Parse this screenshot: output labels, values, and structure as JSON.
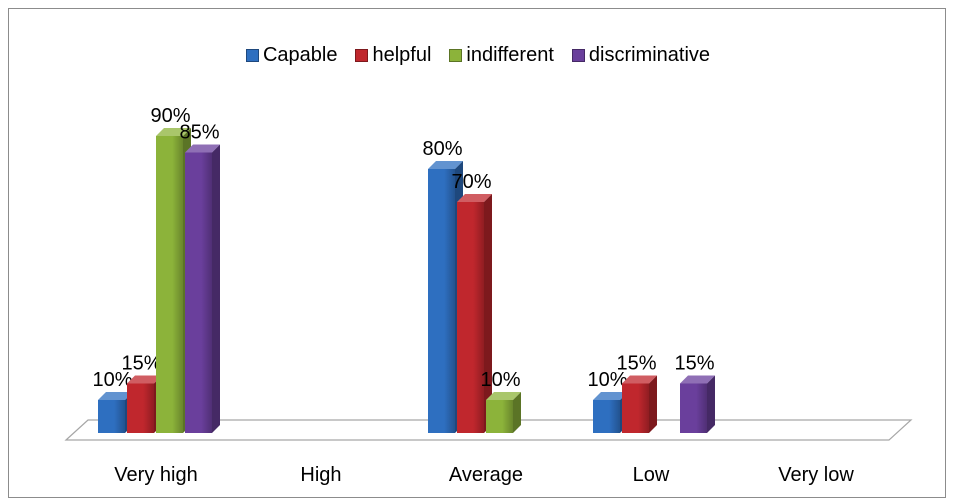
{
  "chart_data": {
    "type": "bar",
    "categories": [
      "Very high",
      "High",
      "Average",
      "Low",
      "Very low"
    ],
    "series": [
      {
        "name": "Capable",
        "values": [
          10,
          null,
          80,
          10,
          null
        ],
        "labels": [
          "10%",
          "",
          "80%",
          "10%",
          ""
        ]
      },
      {
        "name": "helpful",
        "values": [
          15,
          null,
          70,
          15,
          null
        ],
        "labels": [
          "15%",
          "",
          "70%",
          "15%",
          ""
        ]
      },
      {
        "name": "indifferent",
        "values": [
          90,
          null,
          10,
          null,
          null
        ],
        "labels": [
          "90%",
          "",
          "10%",
          "",
          ""
        ]
      },
      {
        "name": "discriminative",
        "values": [
          85,
          null,
          null,
          15,
          null
        ],
        "labels": [
          "85%",
          "",
          "",
          "15%",
          ""
        ]
      }
    ],
    "ylim": [
      0,
      100
    ],
    "grid": false,
    "legend_position": "top",
    "title": "",
    "xlabel": "",
    "ylabel": "",
    "colors": [
      "#2e6fc0",
      "#c0272d",
      "#8cb33a",
      "#6a3f9c"
    ]
  }
}
